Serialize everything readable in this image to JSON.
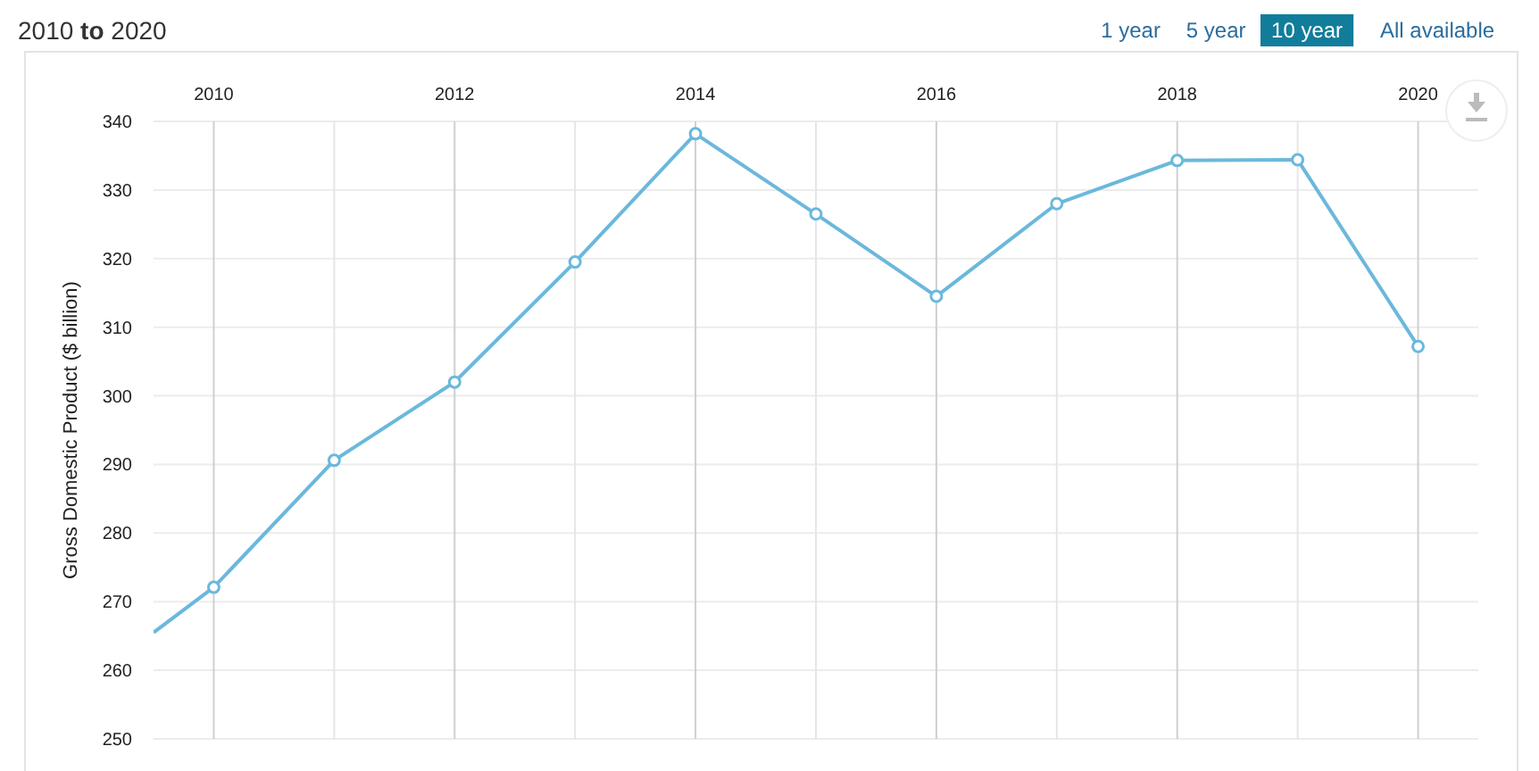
{
  "chart_data": {
    "type": "line",
    "title": "2010 to 2020",
    "ylabel": "Gross Domestic Product ($ billion)",
    "x": [
      2009.5,
      2010,
      2011,
      2012,
      2013,
      2014,
      2015,
      2016,
      2017,
      2018,
      2019,
      2020
    ],
    "series": [
      {
        "color": "#6bb8dc",
        "values": [
          265.5,
          272.1,
          290.6,
          302,
          319.5,
          338.2,
          326.5,
          314.5,
          328,
          334.3,
          334.4,
          307.2
        ]
      }
    ],
    "xlim": [
      2009.5,
      2020.5
    ],
    "xticks": [
      2010,
      {
        "value": 2011,
        "label": null
      },
      2012,
      {
        "value": 2013,
        "label": null
      },
      2014,
      {
        "value": 2015,
        "label": null
      },
      2016,
      {
        "value": 2017,
        "label": null
      },
      2018,
      {
        "value": 2019,
        "label": null
      },
      2020
    ],
    "ylim": [
      250,
      340
    ],
    "yticks": [
      250,
      260,
      270,
      280,
      290,
      300,
      310,
      320,
      330,
      340
    ],
    "grid": true,
    "marker": "circle",
    "line_style": "solid",
    "annotations": [
      "1 year",
      "5 year",
      "10 year",
      "All available"
    ]
  }
}
